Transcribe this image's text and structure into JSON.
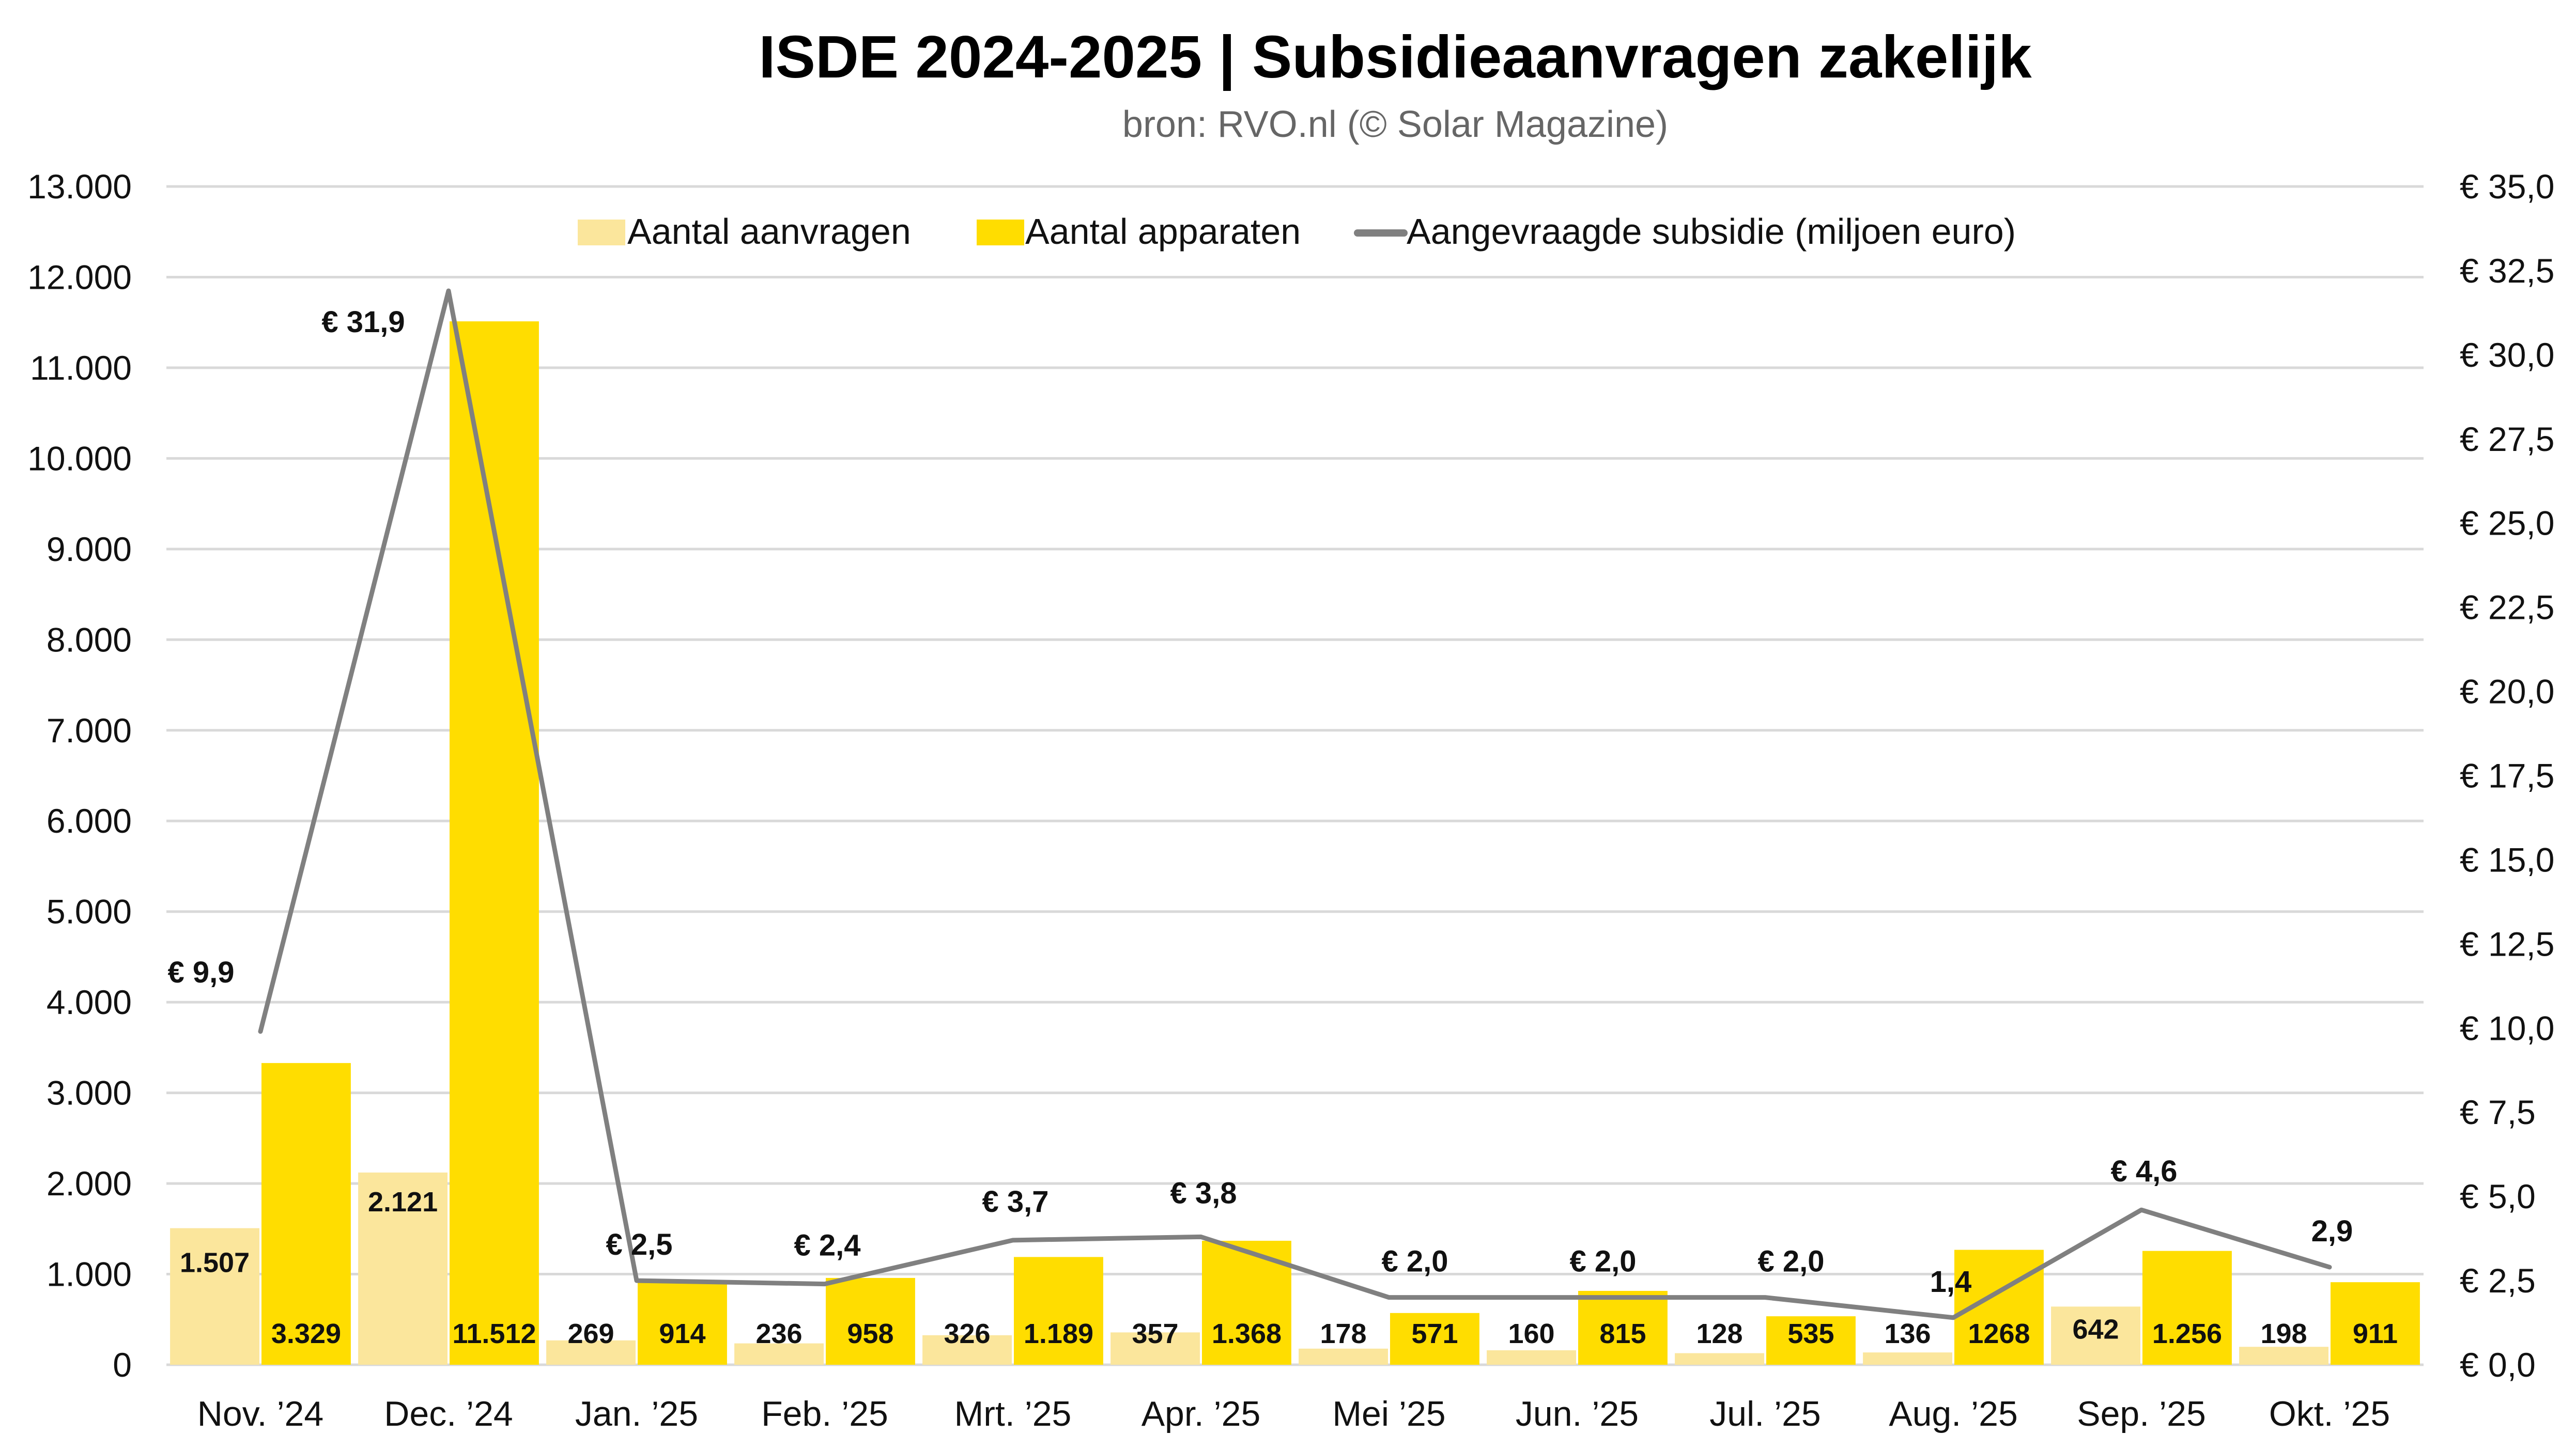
{
  "chart_data": {
    "type": "bar+line",
    "title": "ISDE 2024-2025 | Subsidieaanvragen zakelijk",
    "subtitle": "bron: RVO.nl (© Solar Magazine)",
    "categories": [
      "Nov. ’24",
      "Dec. ’24",
      "Jan. ’25",
      "Feb. ’25",
      "Mrt. ’25",
      "Apr. ’25",
      "Mei ’25",
      "Jun. ’25",
      "Jul. ’25",
      "Aug. ’25",
      "Sep. ’25",
      "Okt. ’25"
    ],
    "series": [
      {
        "name": "Aantal aanvragen",
        "type": "bar",
        "axis": "left",
        "color": "#FBE69C",
        "values": [
          1507,
          2121,
          269,
          236,
          326,
          357,
          178,
          160,
          128,
          136,
          642,
          198
        ],
        "labels": [
          "1.507",
          "2.121",
          "269",
          "236",
          "326",
          "357",
          "178",
          "160",
          "128",
          "136",
          "642",
          "198"
        ]
      },
      {
        "name": "Aantal apparaten",
        "type": "bar",
        "axis": "left",
        "color": "#FFDD00",
        "values": [
          3329,
          11512,
          914,
          958,
          1189,
          1368,
          571,
          815,
          535,
          1268,
          1256,
          911
        ],
        "labels": [
          "3.329",
          "11.512",
          "914",
          "958",
          "1.189",
          "1.368",
          "571",
          "815",
          "535",
          "1268",
          "1.256",
          "911"
        ]
      },
      {
        "name": "Aangevraagde subsidie (miljoen euro)",
        "type": "line",
        "axis": "right",
        "color": "#808080",
        "values": [
          9.9,
          31.9,
          2.5,
          2.4,
          3.7,
          3.8,
          2.0,
          2.0,
          2.0,
          1.4,
          4.6,
          2.9
        ],
        "labels": [
          "€ 9,9",
          "€ 31,9",
          "€ 2,5",
          "€ 2,4",
          "€ 3,7",
          "€ 3,8",
          "€ 2,0",
          "€ 2,0",
          "€ 2,0",
          "1,4",
          "€ 4,6",
          "2,9"
        ]
      }
    ],
    "y_left": {
      "ylim": [
        0,
        13000
      ],
      "ticks": [
        0,
        1000,
        2000,
        3000,
        4000,
        5000,
        6000,
        7000,
        8000,
        9000,
        10000,
        11000,
        12000,
        13000
      ],
      "tick_labels": [
        "0",
        "1.000",
        "2.000",
        "3.000",
        "4.000",
        "5.000",
        "6.000",
        "7.000",
        "8.000",
        "9.000",
        "10.000",
        "11.000",
        "12.000",
        "13.000"
      ]
    },
    "y_right": {
      "ylim": [
        0,
        35
      ],
      "ticks": [
        0,
        2.5,
        5,
        7.5,
        10,
        12.5,
        15,
        17.5,
        20,
        22.5,
        25,
        27.5,
        30,
        32.5,
        35
      ],
      "tick_labels": [
        "€ 0,0",
        "€ 2,5",
        "€ 5,0",
        "€ 7,5",
        "€ 10,0",
        "€ 12,5",
        "€ 15,0",
        "€ 17,5",
        "€ 20,0",
        "€ 22,5",
        "€ 25,0",
        "€ 27,5",
        "€ 30,0",
        "€ 32,5",
        "€ 35,0"
      ]
    },
    "xlabel": "",
    "ylabel": "",
    "grid": true,
    "legend_position": "top-center"
  }
}
